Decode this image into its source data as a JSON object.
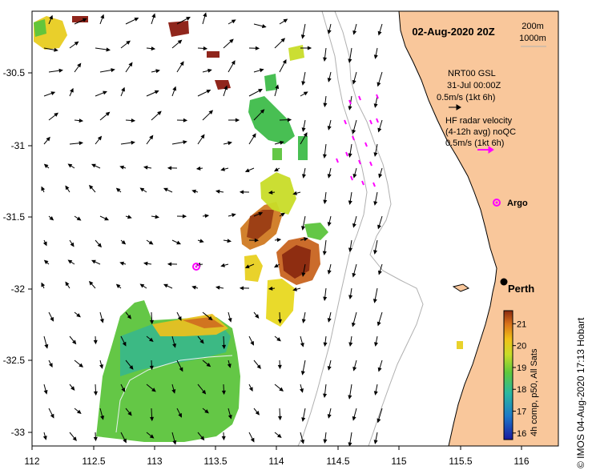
{
  "title": "02-Aug-2020 20Z",
  "depth_legend": {
    "contour_1": "200m",
    "contour_2": "1000m"
  },
  "model_legend": {
    "line1": "NRT00 GSL",
    "line2": "31-Jul 00:00Z",
    "line3": "0.5m/s (1kt 6h)",
    "arrow_color": "#000000"
  },
  "radar_legend": {
    "line1": "HF radar velocity",
    "line2": "(4-12h avg) noQC",
    "line3": "0.5m/s (1kt 6h)",
    "arrow_color": "#ff00ff"
  },
  "argo_label": "Argo",
  "city_label": "Perth",
  "colorbar": {
    "label": "4h comp, p50, All Sats",
    "ticks": [
      "21",
      "20",
      "19",
      "18",
      "17",
      "16"
    ],
    "min": 15.7,
    "max": 21.6
  },
  "credit": "© IMOS 04-Aug-2020 17:13 Hobart",
  "x_axis": {
    "ticks": [
      "112",
      "112.5",
      "113",
      "113.5",
      "114",
      "114.5",
      "115",
      "115.5",
      "116"
    ]
  },
  "y_axis": {
    "ticks": [
      "-30.5",
      "-31",
      "-31.5",
      "-32",
      "-32.5",
      "-33"
    ]
  },
  "colors": {
    "land": "#f9c79b",
    "coast": "#000000",
    "isobath": "#b0b0b0",
    "argo": "#ff00ff"
  }
}
